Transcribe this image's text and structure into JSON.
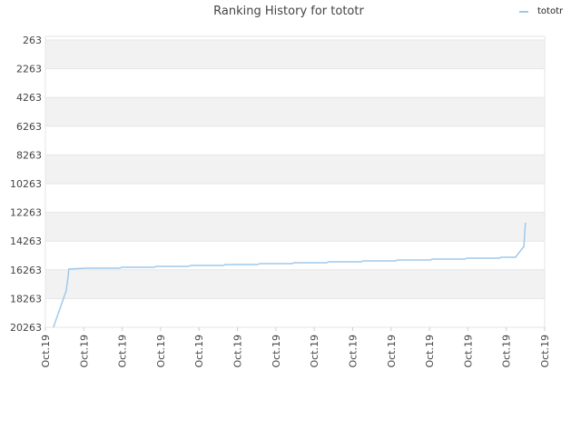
{
  "chart_data": {
    "type": "line",
    "title": "Ranking History for tototr",
    "x": [
      0.21,
      0.54,
      0.59,
      0.61,
      1.06,
      1.94,
      1.99,
      2.84,
      2.88,
      3.73,
      3.78,
      4.63,
      4.68,
      5.53,
      5.58,
      6.43,
      6.48,
      7.33,
      7.37,
      8.22,
      8.27,
      9.12,
      9.17,
      10.02,
      10.07,
      10.92,
      10.97,
      11.82,
      11.86,
      12.24,
      12.46,
      12.48,
      12.5
    ],
    "series": [
      {
        "name": "tototr",
        "color": "#9fc9ec",
        "values": [
          20263,
          17731,
          16782,
          16213,
          16150,
          16150,
          16086,
          16086,
          16023,
          16023,
          15959,
          15959,
          15896,
          15896,
          15832,
          15832,
          15769,
          15769,
          15706,
          15706,
          15642,
          15642,
          15579,
          15579,
          15516,
          15516,
          15452,
          15452,
          15389,
          15389,
          14630,
          13681,
          12984
        ]
      }
    ],
    "xlim": [
      0,
      13
    ],
    "xticks": [
      {
        "value": 0,
        "label": "Oct.19"
      },
      {
        "value": 1,
        "label": "Oct.19"
      },
      {
        "value": 2,
        "label": "Oct.19"
      },
      {
        "value": 3,
        "label": "Oct.19"
      },
      {
        "value": 4,
        "label": "Oct.19"
      },
      {
        "value": 5,
        "label": "Oct.19"
      },
      {
        "value": 6,
        "label": "Oct.19"
      },
      {
        "value": 7,
        "label": "Oct.19"
      },
      {
        "value": 8,
        "label": "Oct.19"
      },
      {
        "value": 9,
        "label": "Oct.19"
      },
      {
        "value": 10,
        "label": "Oct.19"
      },
      {
        "value": 11,
        "label": "Oct.19"
      },
      {
        "value": 12,
        "label": "Oct.19"
      },
      {
        "value": 13,
        "label": "Oct.19"
      }
    ],
    "ylim": [
      20263,
      263
    ],
    "yticks": [
      263,
      2263,
      4263,
      6263,
      8263,
      10263,
      12263,
      14263,
      16263,
      18263,
      20263
    ],
    "grid": true,
    "legend": "top-right"
  }
}
